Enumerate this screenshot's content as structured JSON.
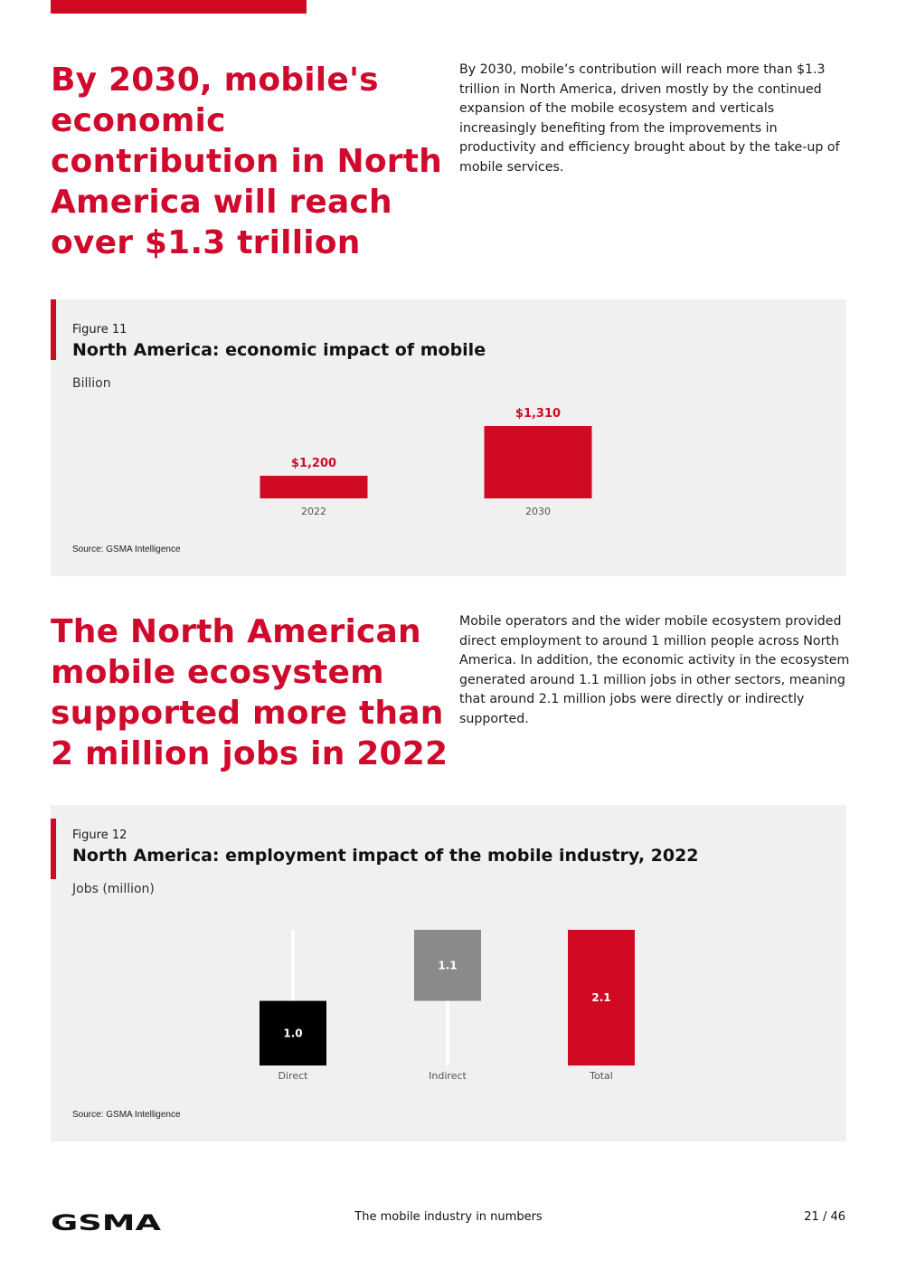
{
  "section1": {
    "headline": "By 2030, mobile's economic contribution in North America will reach over $1.3 trillion",
    "body": "By 2030, mobile’s contribution will reach more than $1.3 trillion in North America, driven mostly by the continued expansion of the mobile ecosystem and verticals increasingly benefiting from the improvements in productivity and efficiency brought about by the take-up of mobile services."
  },
  "figure11": {
    "label": "Figure 11",
    "title": "North America: economic impact of mobile",
    "unit": "Billion",
    "source": "Source: GSMA Intelligence"
  },
  "section2": {
    "headline": "The North American mobile ecosystem supported more than 2 million jobs in 2022",
    "body": "Mobile operators and the wider mobile ecosystem provided direct employment to around 1 million people across North America. In addition, the economic activity in the ecosystem generated around 1.1 million jobs in other sectors, meaning that around 2.1 million jobs were directly or indirectly supported."
  },
  "figure12": {
    "label": "Figure 12",
    "title": "North America: employment impact of the mobile industry, 2022",
    "unit": "Jobs (million)",
    "source": "Source: GSMA Intelligence"
  },
  "chart_data": [
    {
      "type": "bar",
      "title": "North America: economic impact of mobile",
      "ylabel": "Billion",
      "categories": [
        "2022",
        "2030"
      ],
      "values": [
        1200,
        1310
      ],
      "data_labels": [
        "$1,200",
        "$1,310"
      ],
      "ylim": [
        1150,
        1320
      ],
      "color": "#d10a24"
    },
    {
      "type": "waterfall",
      "title": "North America: employment impact of the mobile industry, 2022",
      "ylabel": "Jobs (million)",
      "categories": [
        "Direct",
        "Indirect",
        "Total"
      ],
      "values": [
        1.0,
        1.1,
        2.1
      ],
      "data_labels": [
        "1.0",
        "1.1",
        "2.1"
      ],
      "ylim": [
        0,
        2.1
      ],
      "colors": [
        "#000000",
        "#8a8a8a",
        "#d10a24"
      ]
    }
  ],
  "footer": {
    "logo_text": "GSMA",
    "title": "The mobile industry in numbers",
    "page": "21 / 46"
  }
}
